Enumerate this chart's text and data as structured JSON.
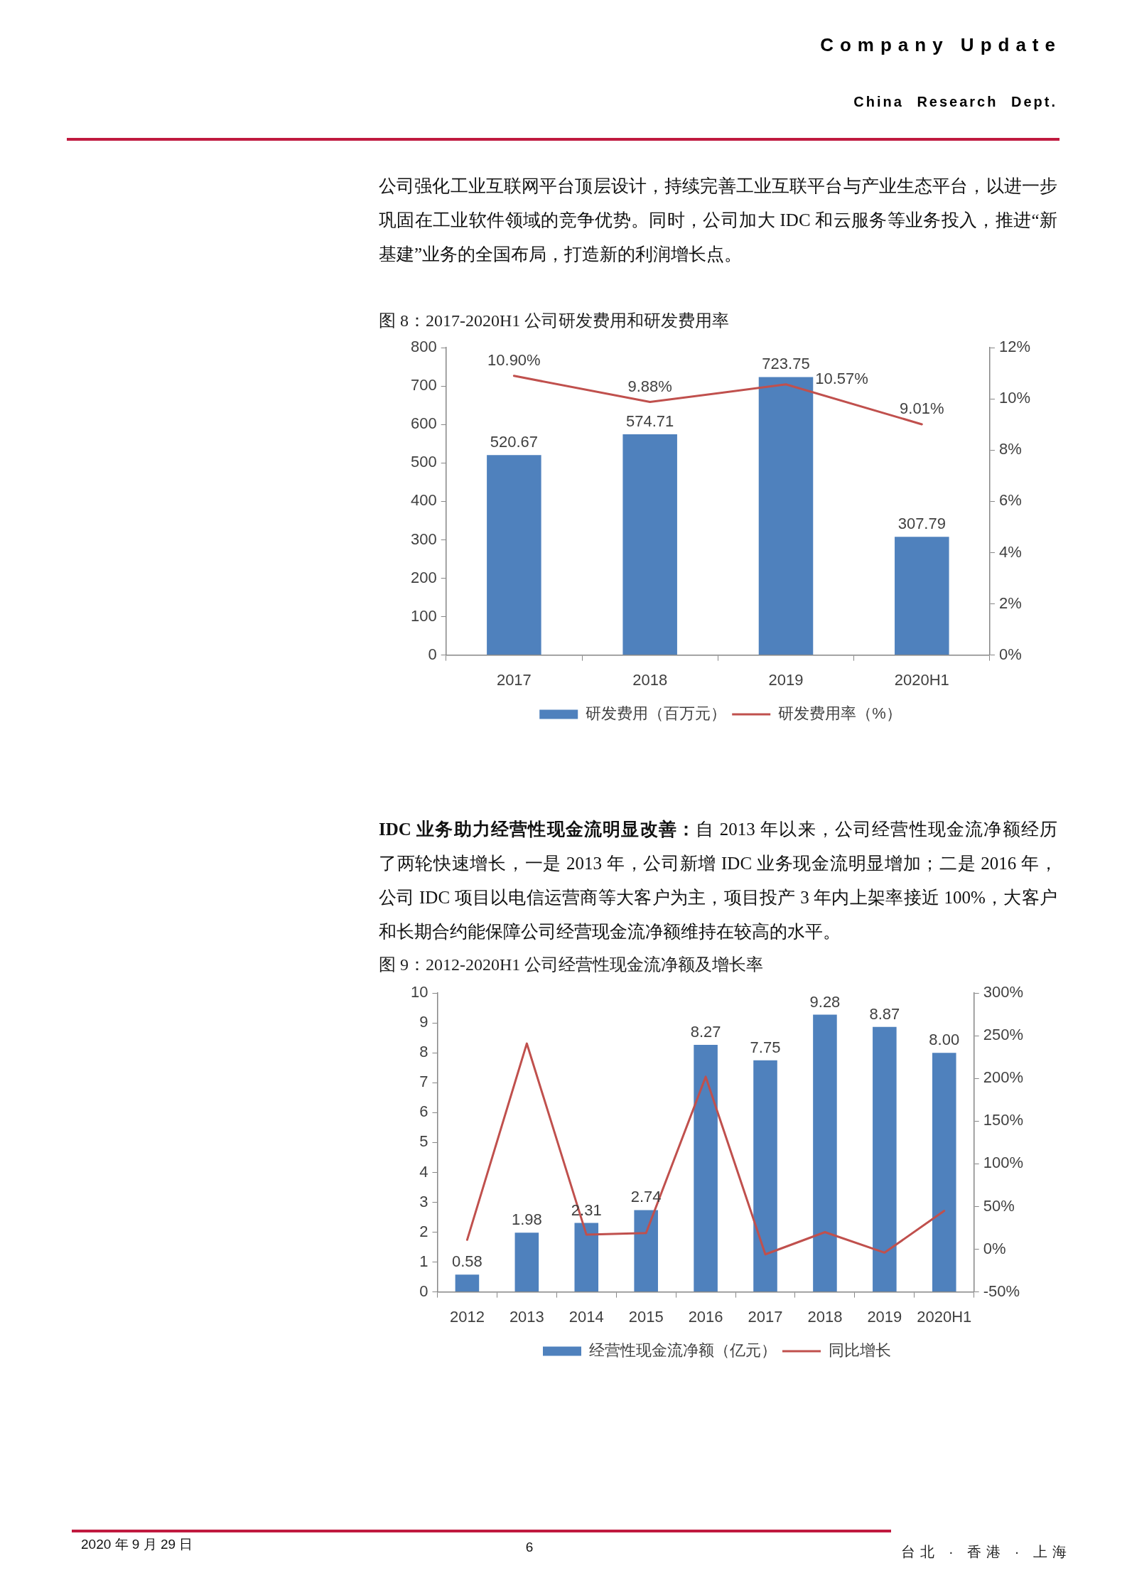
{
  "chart_data": [
    {
      "type": "other",
      "title": "Company Update",
      "subtitle": "China Research Dept.",
      "annotations": [
        "公司强化工业互联网平台顶层设计，持续完善工业互联平台与产业生态平台，以进一步巩固在工业软件领域的竞争优势。同时，公司加大 IDC 和云服务等业务投入，推进“新基建”业务的全国布局，打造新的利润增长点。"
      ]
    },
    {
      "type": "bar",
      "title": "图 8：2017-2020H1 公司研发费用和研发费用率",
      "categories": [
        "2017",
        "2018",
        "2019",
        "2020H1"
      ],
      "series": [
        {
          "name": "研发费用（百万元）",
          "type": "bar",
          "color": "#4f81bd",
          "values": [
            520.67,
            574.71,
            723.75,
            307.79
          ],
          "value_labels": [
            "520.67",
            "574.71",
            "723.75",
            "307.79"
          ]
        },
        {
          "name": "研发费用率（%）",
          "type": "line",
          "axis": "y2",
          "color": "#c0504d",
          "values": [
            10.9,
            9.88,
            10.57,
            9.01
          ],
          "value_labels": [
            "10.90%",
            "9.88%",
            "10.57%",
            "9.01%"
          ]
        }
      ],
      "ylim": [
        0,
        800
      ],
      "yticks": [
        0,
        100,
        200,
        300,
        400,
        500,
        600,
        700,
        800
      ],
      "y2lim": [
        0,
        12
      ],
      "y2ticks": [
        {
          "value": 0,
          "label": "0%"
        },
        {
          "value": 2,
          "label": "2%"
        },
        {
          "value": 4,
          "label": "4%"
        },
        {
          "value": 6,
          "label": "6%"
        },
        {
          "value": 8,
          "label": "8%"
        },
        {
          "value": 10,
          "label": "10%"
        },
        {
          "value": 12,
          "label": "12%"
        }
      ],
      "legend": "bottom",
      "grid": false,
      "marker": "none"
    },
    {
      "type": "other",
      "title": "IDC 业务助力经营性现金流明显改善：",
      "annotations": [
        "自 2013 年以来，公司经营性现金流净额经历",
        "了两轮快速增长，一是 2013 年，公司新增 IDC 业务现金流明显增加；二是 2016 年，公司 IDC 项目以电信运营商等大客户为主，项目投产 3 年内上架率接近 100%，大客户和长期合约能保障公司经营现金流净额维持在较高的水平。"
      ]
    },
    {
      "type": "bar",
      "title": "图 9：2012-2020H1 公司经营性现金流净额及增长率",
      "categories": [
        "2012",
        "2013",
        "2014",
        "2015",
        "2016",
        "2017",
        "2018",
        "2019",
        "2020H1"
      ],
      "series": [
        {
          "name": "经营性现金流净额（亿元）",
          "type": "bar",
          "color": "#4f81bd",
          "values": [
            0.58,
            1.98,
            2.31,
            2.74,
            8.27,
            7.75,
            9.28,
            8.87,
            8.0
          ],
          "value_labels": [
            "0.58",
            "1.98",
            "2.31",
            "2.74",
            "8.27",
            "7.75",
            "9.28",
            "8.87",
            "8.00"
          ]
        },
        {
          "name": "同比增长",
          "type": "line",
          "axis": "y2",
          "color": "#c0504d",
          "values": [
            11,
            241,
            17,
            19,
            202,
            -6,
            20,
            -4,
            45
          ]
        }
      ],
      "ylim": [
        0,
        10
      ],
      "yticks": [
        0,
        1,
        2,
        3,
        4,
        5,
        6,
        7,
        8,
        9,
        10
      ],
      "y2lim": [
        -50,
        300
      ],
      "y2ticks": [
        {
          "value": -50,
          "label": "-50%"
        },
        {
          "value": 0,
          "label": "0%"
        },
        {
          "value": 50,
          "label": "50%"
        },
        {
          "value": 100,
          "label": "100%"
        },
        {
          "value": 150,
          "label": "150%"
        },
        {
          "value": 200,
          "label": "200%"
        },
        {
          "value": 250,
          "label": "250%"
        },
        {
          "value": 300,
          "label": "300%"
        }
      ],
      "legend": "bottom",
      "grid": false,
      "marker": "none"
    },
    {
      "type": "other",
      "annotations": [
        "2020 年 9 月 29 日",
        "6",
        "台北 · 香港 · 上海"
      ]
    }
  ]
}
